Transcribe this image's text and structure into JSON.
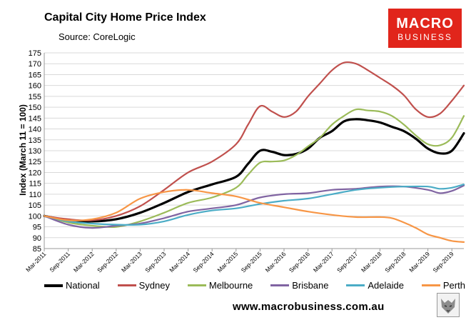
{
  "header": {
    "title": "Capital City Home Price Index",
    "source": "Source: CoreLogic"
  },
  "logo": {
    "line1": "MACRO",
    "line2": "BUSINESS",
    "color": "#e1251b"
  },
  "footer": {
    "website": "www.macrobusiness.com.au"
  },
  "chart_data": {
    "type": "line",
    "title": "Capital City Home Price Index",
    "subtitle": "Source: CoreLogic",
    "ylabel": "Index (March 11 = 100)",
    "xlabel": "",
    "ylim": [
      85,
      175
    ],
    "yticks": [
      85,
      90,
      95,
      100,
      105,
      110,
      115,
      120,
      125,
      130,
      135,
      140,
      145,
      150,
      155,
      160,
      165,
      170,
      175
    ],
    "xlim": [
      "2011-03",
      "2019-12"
    ],
    "xticks": [
      "Mar-2011",
      "Sep-2011",
      "Mar-2012",
      "Sep-2012",
      "Mar-2013",
      "Sep-2013",
      "Mar-2014",
      "Sep-2014",
      "Mar-2015",
      "Sep-2015",
      "Mar-2016",
      "Sep-2016",
      "Mar-2017",
      "Sep-2017",
      "Mar-2018",
      "Sep-2018",
      "Mar-2019",
      "Sep-2019"
    ],
    "grid": "horizontal",
    "legend": "bottom",
    "series": [
      {
        "name": "National",
        "color": "#000000",
        "width": 3.2,
        "x": [
          "2011-03",
          "2011-09",
          "2012-03",
          "2012-09",
          "2013-03",
          "2013-09",
          "2014-03",
          "2014-09",
          "2015-03",
          "2015-06",
          "2015-09",
          "2015-12",
          "2016-03",
          "2016-06",
          "2016-09",
          "2016-12",
          "2017-03",
          "2017-06",
          "2017-09",
          "2017-12",
          "2018-03",
          "2018-06",
          "2018-09",
          "2018-12",
          "2019-03",
          "2019-06",
          "2019-09",
          "2019-12"
        ],
        "values": [
          100,
          98,
          97.5,
          98.5,
          101.5,
          106,
          111,
          114.5,
          118,
          124,
          130,
          129.5,
          128,
          128.5,
          131,
          136,
          139,
          143.5,
          144.5,
          144,
          143,
          141,
          139,
          135.5,
          131,
          128.8,
          130,
          138
        ]
      },
      {
        "name": "Sydney",
        "color": "#c0504d",
        "width": 2.2,
        "x": [
          "2011-03",
          "2011-09",
          "2012-03",
          "2012-09",
          "2013-03",
          "2013-09",
          "2014-03",
          "2014-09",
          "2015-03",
          "2015-06",
          "2015-09",
          "2015-12",
          "2016-03",
          "2016-06",
          "2016-09",
          "2016-12",
          "2017-03",
          "2017-06",
          "2017-09",
          "2017-12",
          "2018-03",
          "2018-06",
          "2018-09",
          "2018-12",
          "2019-03",
          "2019-06",
          "2019-09",
          "2019-12"
        ],
        "values": [
          100,
          98.5,
          98,
          100,
          104.5,
          112,
          120,
          125,
          133,
          142,
          150.5,
          148,
          145.5,
          148,
          155,
          161,
          167,
          170.5,
          170,
          167,
          163.5,
          160,
          155.5,
          149,
          145.5,
          147,
          153,
          160
        ]
      },
      {
        "name": "Melbourne",
        "color": "#9bbb59",
        "width": 2.2,
        "x": [
          "2011-03",
          "2011-09",
          "2012-03",
          "2012-09",
          "2013-03",
          "2013-09",
          "2014-03",
          "2014-09",
          "2015-03",
          "2015-06",
          "2015-09",
          "2015-12",
          "2016-03",
          "2016-06",
          "2016-09",
          "2016-12",
          "2017-03",
          "2017-06",
          "2017-09",
          "2017-12",
          "2018-03",
          "2018-06",
          "2018-09",
          "2018-12",
          "2019-03",
          "2019-06",
          "2019-09",
          "2019-12"
        ],
        "values": [
          100,
          97,
          95.5,
          95,
          97.5,
          101.5,
          106,
          108.5,
          113,
          119,
          124.5,
          125,
          125.5,
          128,
          132,
          136,
          142,
          146,
          149,
          148.5,
          148,
          146,
          142,
          137,
          133,
          132.5,
          136,
          146
        ]
      },
      {
        "name": "Brisbane",
        "color": "#8064a2",
        "width": 2.2,
        "x": [
          "2011-03",
          "2011-09",
          "2012-03",
          "2012-09",
          "2013-03",
          "2013-09",
          "2014-03",
          "2014-09",
          "2015-03",
          "2015-09",
          "2016-03",
          "2016-09",
          "2017-03",
          "2017-09",
          "2018-03",
          "2018-09",
          "2019-03",
          "2019-06",
          "2019-09",
          "2019-12"
        ],
        "values": [
          100,
          96,
          94.5,
          95.5,
          96.5,
          99,
          102,
          103.5,
          105,
          108.5,
          110,
          110.5,
          112,
          112.5,
          113.5,
          113.5,
          112,
          110.5,
          111.5,
          114
        ]
      },
      {
        "name": "Adelaide",
        "color": "#4bacc6",
        "width": 2.2,
        "x": [
          "2011-03",
          "2011-09",
          "2012-03",
          "2012-09",
          "2013-03",
          "2013-09",
          "2014-03",
          "2014-09",
          "2015-03",
          "2015-09",
          "2016-03",
          "2016-09",
          "2017-03",
          "2017-09",
          "2018-03",
          "2018-09",
          "2019-03",
          "2019-06",
          "2019-09",
          "2019-12"
        ],
        "values": [
          100,
          97.5,
          96.5,
          96,
          96,
          97.5,
          100.5,
          102.5,
          103.5,
          105.5,
          107,
          108,
          110,
          112,
          113,
          113.5,
          113.5,
          112.5,
          113,
          114.5
        ]
      },
      {
        "name": "Perth",
        "color": "#f79646",
        "width": 2.2,
        "x": [
          "2011-03",
          "2011-09",
          "2012-03",
          "2012-09",
          "2013-03",
          "2013-09",
          "2014-03",
          "2014-09",
          "2015-03",
          "2015-09",
          "2016-03",
          "2016-09",
          "2017-03",
          "2017-09",
          "2018-03",
          "2018-06",
          "2018-09",
          "2018-12",
          "2019-03",
          "2019-06",
          "2019-09",
          "2019-12"
        ],
        "values": [
          100,
          98,
          98.5,
          101.5,
          108,
          111,
          112,
          110.5,
          109,
          106,
          104,
          102,
          100.5,
          99.5,
          99.5,
          99,
          97,
          94.5,
          91.5,
          90,
          88.5,
          88
        ]
      }
    ]
  }
}
